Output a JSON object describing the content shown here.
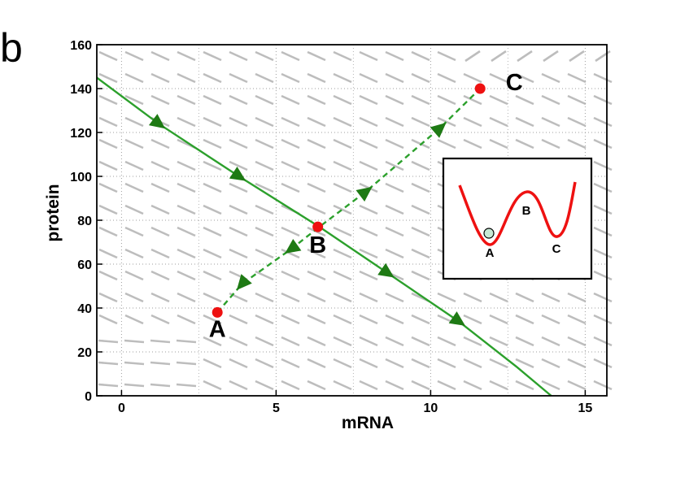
{
  "panel_label": "b",
  "chart_data": {
    "type": "line",
    "xlabel": "mRNA",
    "ylabel": "protein",
    "xlim": [
      -0.8,
      15.7
    ],
    "ylim": [
      0,
      160
    ],
    "xticks": [
      0,
      5,
      10,
      15
    ],
    "yticks": [
      0,
      20,
      40,
      60,
      80,
      100,
      120,
      140,
      160
    ],
    "grid": true,
    "grid_style": "dotted",
    "background_field": "gray dashed direction field",
    "series": [
      {
        "style": "solid",
        "color": "#2ca02c",
        "x": [
          -0.8,
          1.2,
          3.8,
          6.4,
          8.6,
          10.9,
          12.8,
          13.9
        ],
        "y": [
          145,
          124,
          100,
          77,
          56,
          34,
          13,
          0
        ]
      },
      {
        "style": "dashed",
        "color": "#2ca02c",
        "x": [
          3.1,
          3.9,
          5.5,
          6.4,
          7.9,
          10.3,
          11.6
        ],
        "y": [
          38,
          51,
          67,
          77,
          93,
          122,
          140
        ]
      }
    ],
    "points": [
      {
        "label": "A",
        "x": 3.1,
        "y": 38,
        "color": "#ee1111"
      },
      {
        "label": "B",
        "x": 6.35,
        "y": 77,
        "color": "#ee1111"
      },
      {
        "label": "C",
        "x": 11.6,
        "y": 140,
        "color": "#ee1111"
      }
    ],
    "arrows": [
      {
        "x": 1.2,
        "y": 124,
        "series": 0
      },
      {
        "x": 3.8,
        "y": 100,
        "series": 0
      },
      {
        "x": 8.6,
        "y": 56,
        "series": 0
      },
      {
        "x": 10.9,
        "y": 34,
        "series": 0
      },
      {
        "x": 3.9,
        "y": 51,
        "series": 1
      },
      {
        "x": 5.5,
        "y": 67,
        "series": 1
      },
      {
        "x": 7.9,
        "y": 93,
        "series": 1
      },
      {
        "x": 10.3,
        "y": 122,
        "series": 1
      }
    ],
    "inset": {
      "type": "potential landscape",
      "curve_color": "#ee1111",
      "labels": [
        "A",
        "B",
        "C"
      ],
      "ball_color": "#c7ead6"
    }
  }
}
